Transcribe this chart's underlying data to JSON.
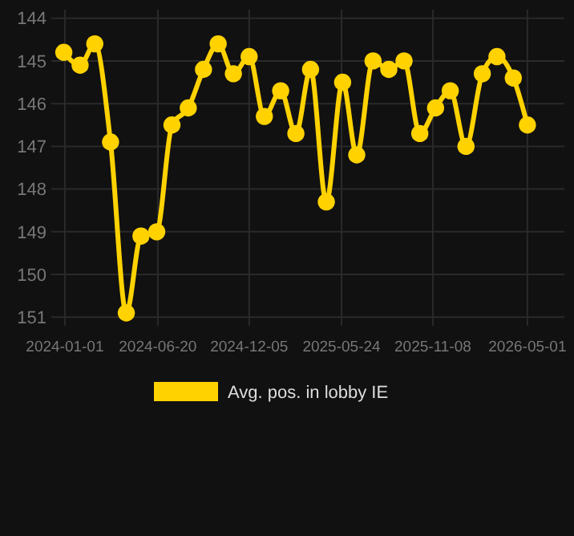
{
  "chart_data": {
    "type": "line",
    "x": [
      "2023-12-30",
      "2024-01-29",
      "2024-02-25",
      "2024-03-25",
      "2024-04-23",
      "2024-05-20",
      "2024-06-18",
      "2024-07-16",
      "2024-08-15",
      "2024-09-12",
      "2024-10-09",
      "2024-11-06",
      "2024-12-05",
      "2025-01-02",
      "2025-02-01",
      "2025-03-01",
      "2025-03-28",
      "2025-04-26",
      "2025-05-26",
      "2025-06-21",
      "2025-07-21",
      "2025-08-19",
      "2025-09-16",
      "2025-10-15",
      "2025-11-13",
      "2025-12-10",
      "2026-01-08",
      "2026-02-07",
      "2026-03-06",
      "2026-04-05",
      "2026-05-01"
    ],
    "series": [
      {
        "name": "Avg. pos. in lobby IE",
        "color": "#ffd200",
        "values": [
          144.8,
          145.1,
          144.6,
          146.9,
          150.9,
          149.1,
          149.0,
          146.5,
          146.1,
          145.2,
          144.6,
          145.3,
          144.9,
          146.3,
          145.7,
          146.7,
          145.2,
          148.3,
          145.5,
          147.2,
          145.0,
          145.2,
          145.0,
          146.7,
          146.1,
          145.7,
          147.0,
          145.3,
          144.9,
          145.4,
          146.5
        ]
      }
    ],
    "xlim": [
      "2023-12-07",
      "2026-07-08"
    ],
    "ylim": [
      151.2,
      143.8
    ],
    "xticks": [
      "2024-01-01",
      "2024-06-20",
      "2024-12-05",
      "2025-05-24",
      "2025-11-08",
      "2026-05-01"
    ],
    "yticks": [
      144,
      145,
      146,
      147,
      148,
      149,
      150,
      151
    ],
    "grid": true,
    "legend": "bottom",
    "marker": "circle",
    "line_style": "solid"
  }
}
